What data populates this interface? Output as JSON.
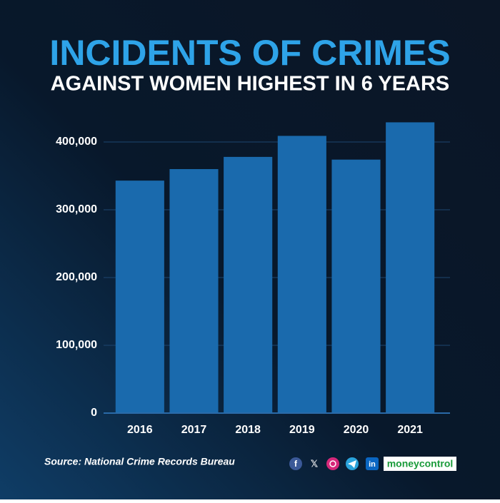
{
  "chart_data": {
    "type": "bar",
    "title": "INCIDENTS OF CRIMES",
    "subtitle": "AGAINST WOMEN HIGHEST IN 6 YEARS",
    "categories": [
      "2016",
      "2017",
      "2018",
      "2019",
      "2020",
      "2021"
    ],
    "values": [
      343000,
      360000,
      378000,
      409000,
      374000,
      429000
    ],
    "color": "#1a6aad",
    "ylim": [
      0,
      450000
    ],
    "yticks": [
      0,
      {
        "value": 100000,
        "label": "100,000"
      },
      {
        "value": 200000,
        "label": "200,000"
      },
      {
        "value": 300000,
        "label": "300,000"
      },
      {
        "value": 400000,
        "label": "400,000"
      }
    ],
    "grid": true,
    "source": "Source: National Crime Records Bureau"
  },
  "brand": "moneycontrol"
}
